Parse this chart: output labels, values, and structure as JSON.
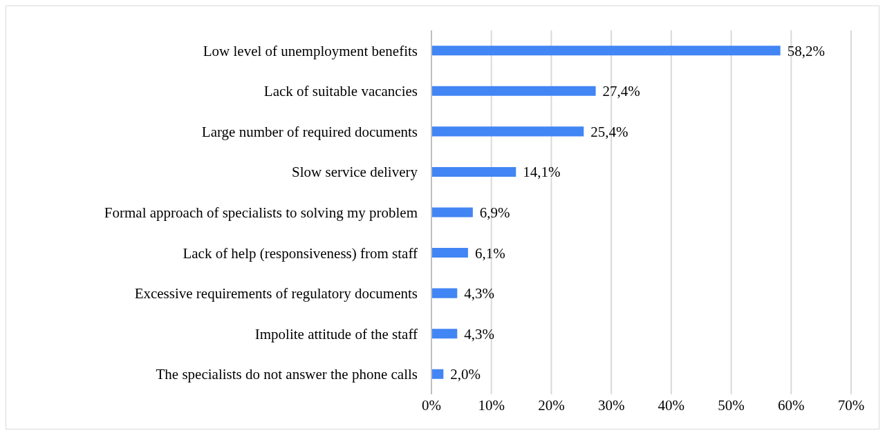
{
  "chart_data": {
    "type": "bar",
    "orientation": "horizontal",
    "categories": [
      "Low level of unemployment benefits",
      "Lack of suitable vacancies",
      "Large number of required documents",
      "Slow service delivery",
      "Formal approach of specialists to solving my problem",
      "Lack of help (responsiveness) from staff",
      "Excessive requirements of regulatory documents",
      "Impolite attitude of the staff",
      "The specialists do not answer the phone calls"
    ],
    "values": [
      58.2,
      27.4,
      25.4,
      14.1,
      6.9,
      6.1,
      4.3,
      4.3,
      2.0
    ],
    "value_labels": [
      "58,2%",
      "27,4%",
      "25,4%",
      "14,1%",
      "6,9%",
      "6,1%",
      "4,3%",
      "4,3%",
      "2,0%"
    ],
    "color": "#4285f4",
    "xlim": [
      0,
      70
    ],
    "xticks": [
      {
        "value": 0,
        "label": "0%"
      },
      {
        "value": 10,
        "label": "10%"
      },
      {
        "value": 20,
        "label": "20%"
      },
      {
        "value": 30,
        "label": "30%"
      },
      {
        "value": 40,
        "label": "40%"
      },
      {
        "value": 50,
        "label": "50%"
      },
      {
        "value": 60,
        "label": "60%"
      },
      {
        "value": 70,
        "label": "70%"
      }
    ],
    "grid": "x"
  }
}
